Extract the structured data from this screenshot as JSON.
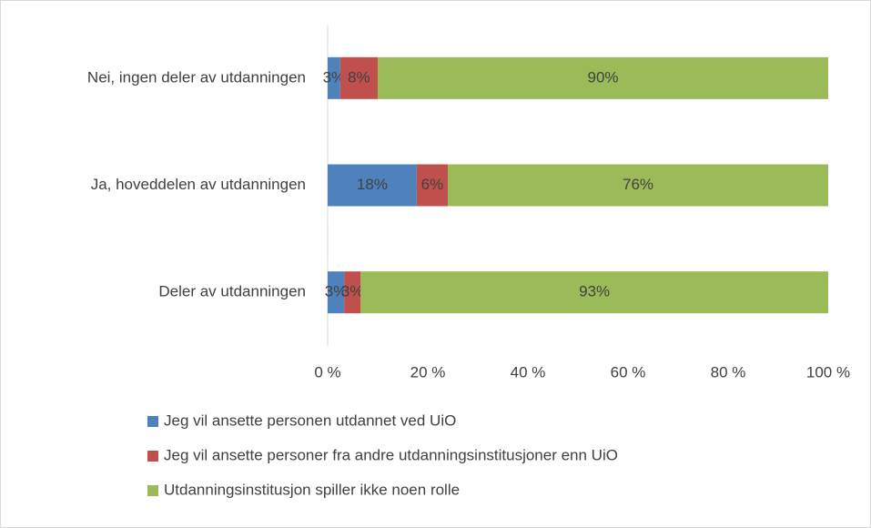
{
  "chart_data": {
    "type": "stacked-barh",
    "categories": [
      "Nei, ingen deler av utdanningen",
      "Ja, hoveddelen av utdanningen",
      "Deler av utdanningen"
    ],
    "series": [
      {
        "name": "Jeg vil ansette personen utdannet ved UiO",
        "color": "#4f81bd",
        "values": [
          2.5,
          17.8,
          3.3
        ],
        "value_labels": [
          "3%",
          "18%",
          "3%"
        ]
      },
      {
        "name": "Jeg vil ansette personer fra andre utdanningsinstitusjoner enn UiO",
        "color": "#c0504d",
        "values": [
          7.5,
          6.2,
          3.3
        ],
        "value_labels": [
          "8%",
          "6%",
          "3%"
        ]
      },
      {
        "name": "Utdanningsinstitusjon spiller ikke noen rolle",
        "color": "#9bbb59",
        "values": [
          90,
          76,
          93.4
        ],
        "value_labels": [
          "90%",
          "76%",
          "93%"
        ]
      }
    ],
    "xlim": [
      0,
      100
    ],
    "xticks": [
      {
        "value": 0,
        "label": "0 %"
      },
      {
        "value": 20,
        "label": "20 %"
      },
      {
        "value": 40,
        "label": "40 %"
      },
      {
        "value": 60,
        "label": "60 %"
      },
      {
        "value": 80,
        "label": "80 %"
      },
      {
        "value": 100,
        "label": "100 %"
      }
    ],
    "legend": "bottom"
  }
}
